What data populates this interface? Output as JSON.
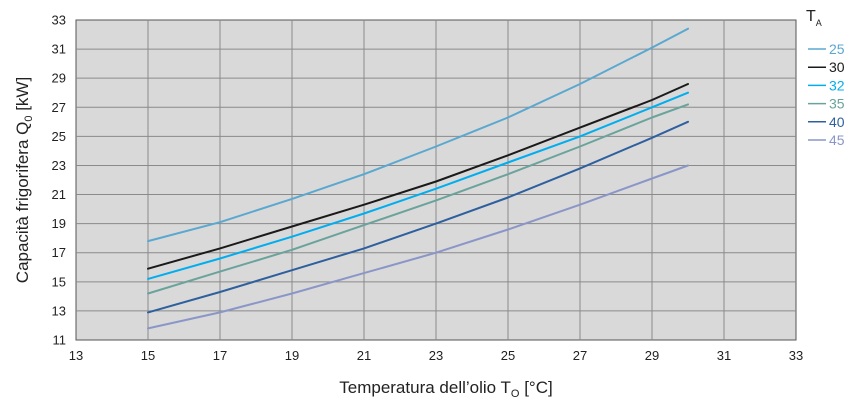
{
  "chart_data": {
    "type": "line",
    "title": "",
    "xlabel": "Temperatura dell’olio T",
    "xlabel_sub": "O",
    "xlabel_unit": " [°C]",
    "ylabel": "Capacità frigorifera Q",
    "ylabel_sub": "0",
    "ylabel_unit": " [kW]",
    "xlim": [
      13,
      33
    ],
    "ylim": [
      11,
      33
    ],
    "x_ticks": [
      "13",
      "15",
      "17",
      "19",
      "21",
      "23",
      "25",
      "27",
      "29",
      "31",
      "33"
    ],
    "y_ticks": [
      "11",
      "13",
      "15",
      "17",
      "19",
      "21",
      "23",
      "25",
      "27",
      "29",
      "31",
      "33"
    ],
    "grid": true,
    "legend_position": "right",
    "legend_title": "T",
    "legend_title_sub": "A",
    "x": [
      15,
      17,
      19,
      21,
      23,
      25,
      27,
      29,
      30
    ],
    "series": [
      {
        "name": "25",
        "color": "#5aa8d0",
        "values": [
          17.8,
          19.1,
          20.7,
          22.4,
          24.3,
          26.3,
          28.6,
          31.1,
          32.4
        ]
      },
      {
        "name": "30",
        "color": "#1a1a1a",
        "values": [
          15.9,
          17.3,
          18.8,
          20.3,
          21.9,
          23.7,
          25.6,
          27.5,
          28.6
        ]
      },
      {
        "name": "32",
        "color": "#00aeef",
        "values": [
          15.2,
          16.6,
          18.1,
          19.7,
          21.4,
          23.2,
          25.0,
          27.0,
          28.0
        ]
      },
      {
        "name": "35",
        "color": "#6aa39c",
        "values": [
          14.2,
          15.7,
          17.2,
          18.9,
          20.6,
          22.4,
          24.3,
          26.3,
          27.2
        ]
      },
      {
        "name": "40",
        "color": "#2e5f9e",
        "values": [
          12.9,
          14.3,
          15.8,
          17.3,
          19.0,
          20.8,
          22.8,
          24.9,
          26.0
        ]
      },
      {
        "name": "45",
        "color": "#8a96c8",
        "values": [
          11.8,
          12.9,
          14.2,
          15.6,
          17.0,
          18.6,
          20.3,
          22.1,
          23.0
        ]
      }
    ]
  }
}
